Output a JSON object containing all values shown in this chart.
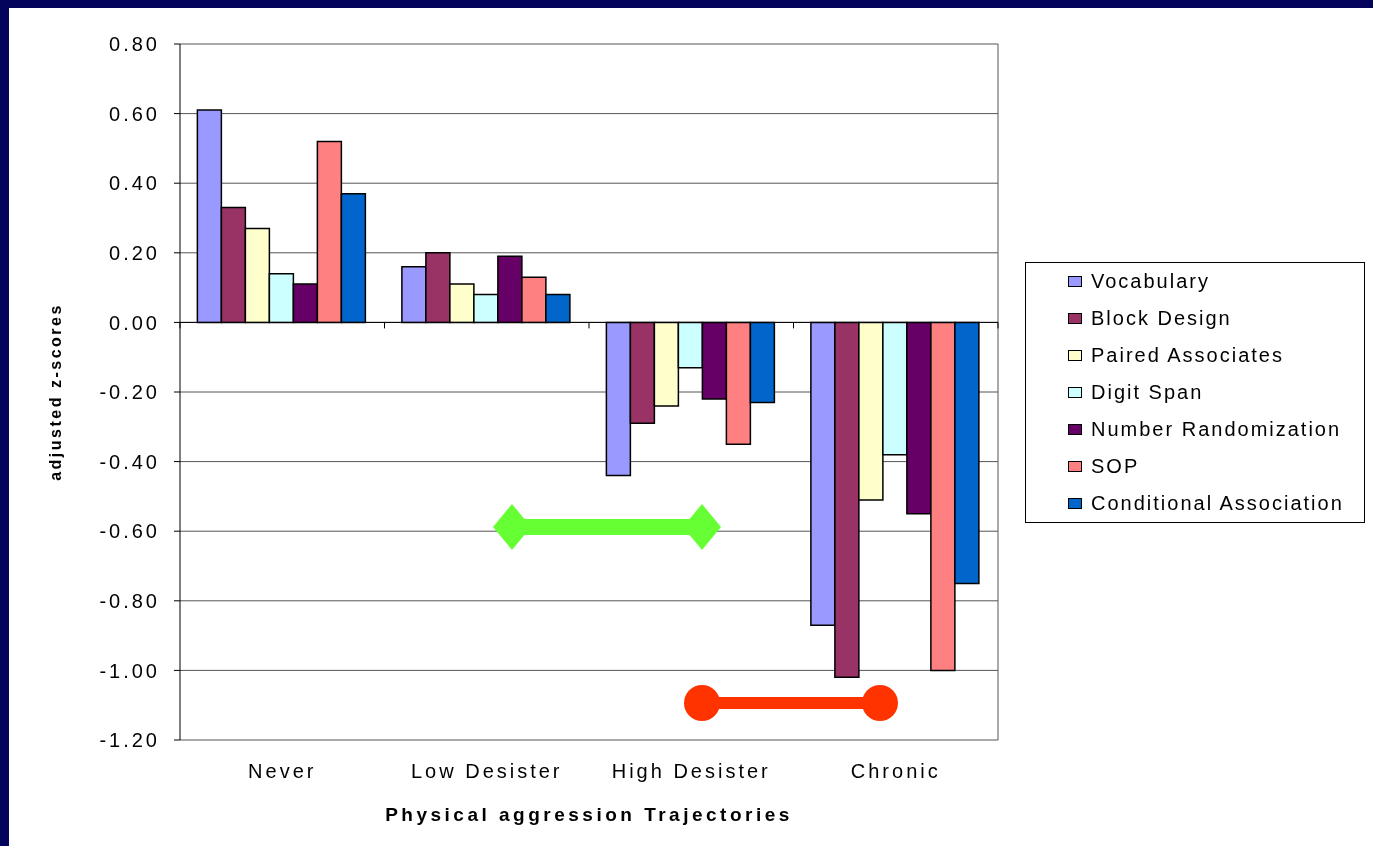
{
  "chart_data": {
    "type": "bar",
    "xlabel": "Physical aggression Trajectories",
    "ylabel": "adjusted z-scores",
    "categories": [
      "Never",
      "Low Desister",
      "High Desister",
      "Chronic"
    ],
    "series": [
      {
        "name": "Vocabulary",
        "color": "#9999ff",
        "values": [
          0.61,
          0.16,
          -0.44,
          -0.87
        ]
      },
      {
        "name": "Block Design",
        "color": "#993366",
        "values": [
          0.33,
          0.2,
          -0.29,
          -1.02
        ]
      },
      {
        "name": "Paired Associates",
        "color": "#ffffcc",
        "values": [
          0.27,
          0.11,
          -0.24,
          -0.51
        ]
      },
      {
        "name": "Digit Span",
        "color": "#ccffff",
        "values": [
          0.14,
          0.08,
          -0.13,
          -0.38
        ]
      },
      {
        "name": "Number Randomization",
        "color": "#660066",
        "values": [
          0.11,
          0.19,
          -0.22,
          -0.55
        ]
      },
      {
        "name": "SOP",
        "color": "#ff8080",
        "values": [
          0.52,
          0.13,
          -0.35,
          -1.0
        ]
      },
      {
        "name": "Conditional Association",
        "color": "#0066cc",
        "values": [
          0.37,
          0.08,
          -0.23,
          -0.75
        ]
      }
    ],
    "ylim": [
      -1.2,
      0.8
    ],
    "yticks": [
      {
        "value": -1.2,
        "label": "-1.20"
      },
      {
        "value": -1.0,
        "label": "-1.00"
      },
      {
        "value": -0.8,
        "label": "-0.80"
      },
      {
        "value": -0.6,
        "label": "-0.60"
      },
      {
        "value": -0.4,
        "label": "-0.40"
      },
      {
        "value": -0.2,
        "label": "-0.20"
      },
      {
        "value": 0,
        "label": "0.00"
      },
      {
        "value": 0.2,
        "label": "0.20"
      },
      {
        "value": 0.4,
        "label": "0.40"
      },
      {
        "value": 0.6,
        "label": "0.60"
      },
      {
        "value": 0.8,
        "label": "0.80"
      }
    ],
    "grid": "y",
    "legend": "right"
  }
}
